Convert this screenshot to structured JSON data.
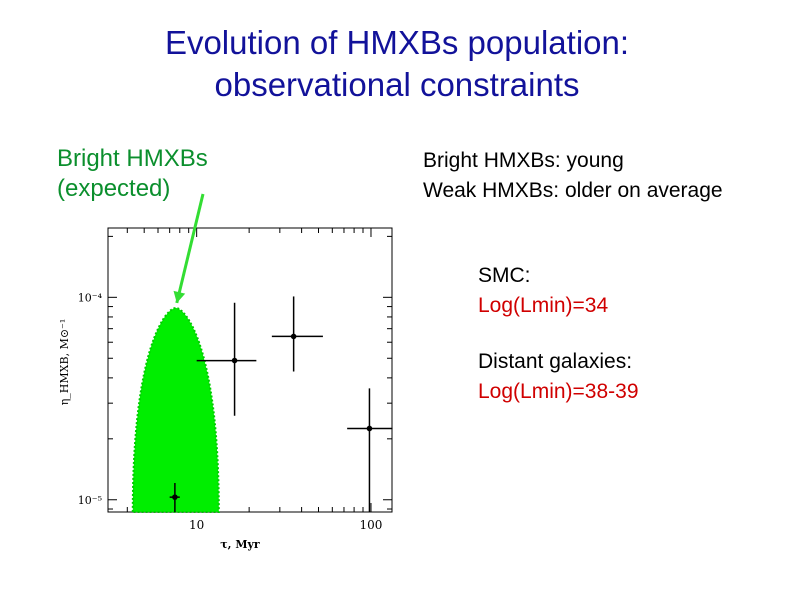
{
  "title": {
    "line1": "Evolution of HMXBs population:",
    "line2": "observational constraints"
  },
  "left_label": {
    "line1": "Bright HMXBs",
    "line2": "(expected)"
  },
  "right_text": {
    "line1": "Bright HMXBs: young",
    "line2": "Weak HMXBs: older on average"
  },
  "info_blocks": [
    {
      "label": "SMC:",
      "value": "Log(Lmin)=34"
    },
    {
      "label": "Distant galaxies:",
      "value": "Log(Lmin)=38-39"
    }
  ],
  "colors": {
    "title": "#12129a",
    "highlight": "#00ee00",
    "arrow": "#33dd33",
    "accent_red": "#d00000"
  },
  "chart_data": {
    "type": "scatter",
    "xscale": "log",
    "yscale": "log",
    "xlim": [
      3.1,
      132
    ],
    "ylim": [
      8.7e-06,
      0.00022
    ],
    "x_ticks": [
      {
        "value": 10,
        "label": "10"
      },
      {
        "value": 100,
        "label": "100"
      }
    ],
    "y_ticks": [
      {
        "value": 0.0001,
        "label": "10⁻⁴"
      },
      {
        "value": 1e-05,
        "label": "10⁻⁵"
      }
    ],
    "xlabel": "τ, Myr",
    "ylabel": "η_HMXB, M⊙⁻¹",
    "points": [
      {
        "x": 7.5,
        "y": 1.03e-05,
        "xerr": [
          7.0,
          8.0
        ],
        "yerr": [
          8.7e-06,
          1.21e-05
        ]
      },
      {
        "x": 16.5,
        "y": 4.87e-05,
        "xerr": [
          10.0,
          22.0
        ],
        "yerr": [
          2.6e-05,
          9.4e-05
        ]
      },
      {
        "x": 36,
        "y": 6.41e-05,
        "xerr": [
          27.0,
          53.0
        ],
        "yerr": [
          4.3e-05,
          0.000101
        ]
      },
      {
        "x": 98,
        "y": 2.25e-05,
        "xerr": [
          73.0,
          133.0
        ],
        "yerr": [
          8.7e-06,
          3.55e-05
        ]
      }
    ],
    "highlight_region": {
      "label": "Bright HMXBs (expected)",
      "x_range": [
        4.3,
        13.4
      ],
      "y_range": [
        8.7e-06,
        8.86e-05
      ]
    }
  }
}
